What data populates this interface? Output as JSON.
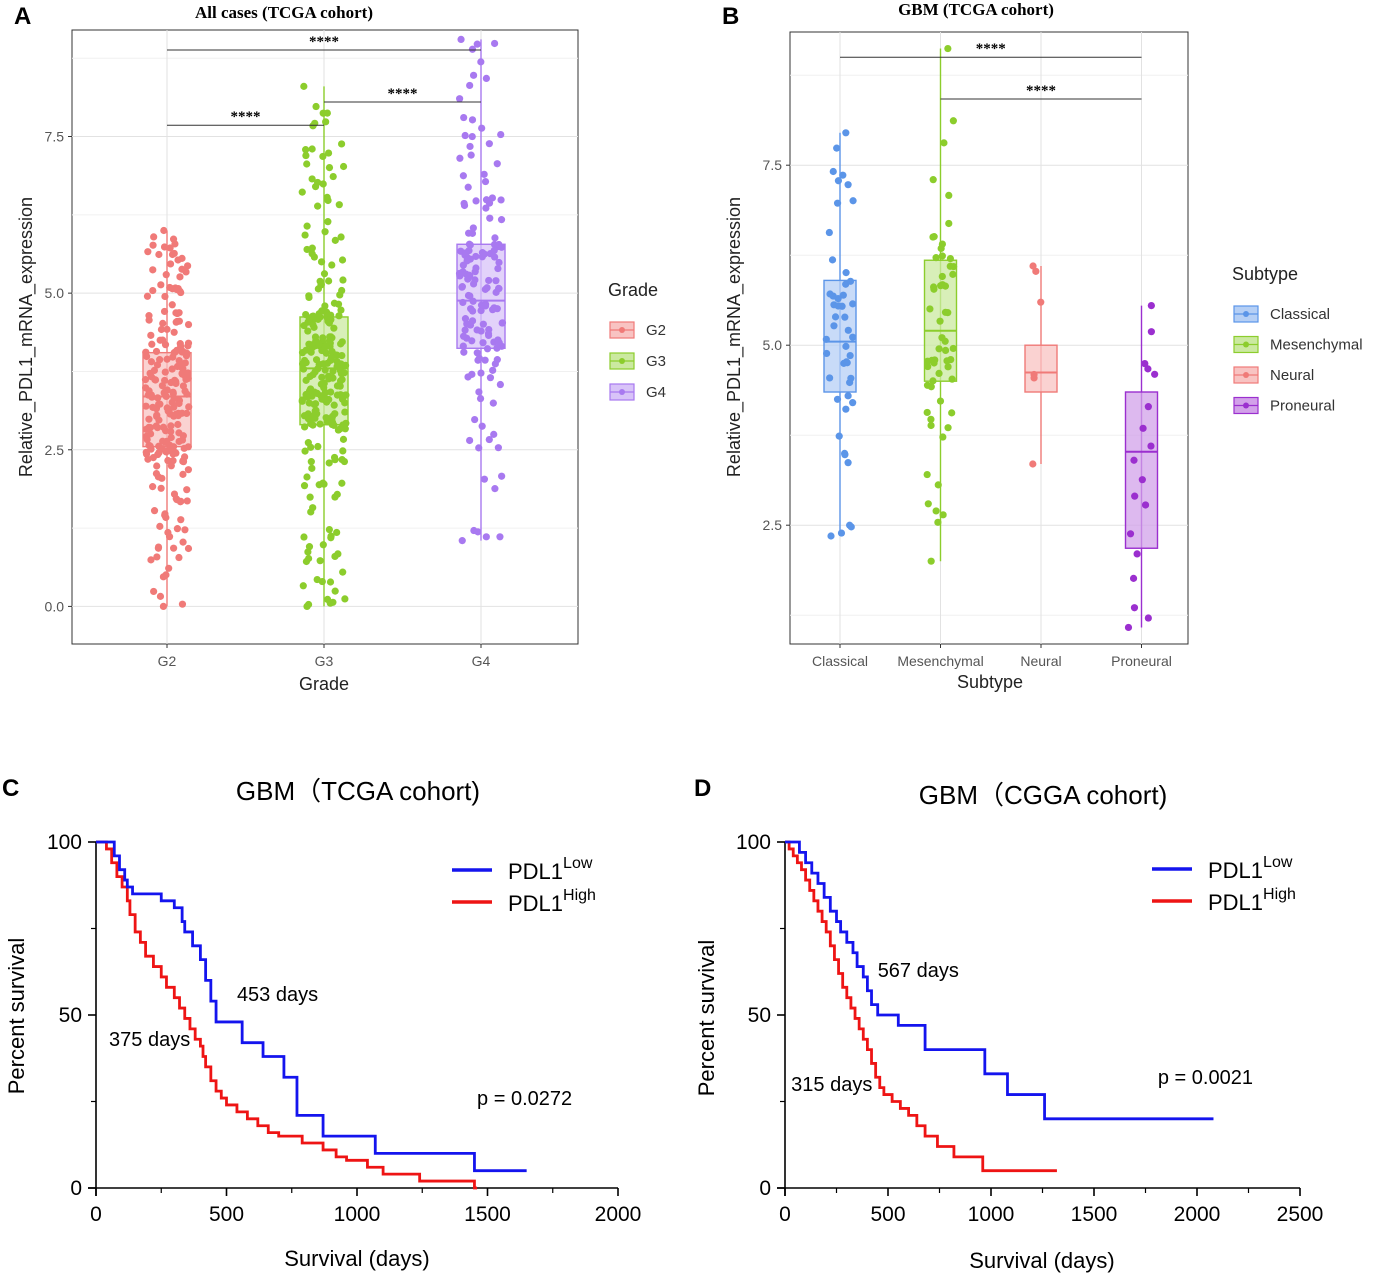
{
  "panels": {
    "a": {
      "label": "A"
    },
    "b": {
      "label": "B"
    },
    "c": {
      "label": "C"
    },
    "d": {
      "label": "D"
    }
  },
  "chart_data": [
    {
      "id": "a",
      "type": "box-scatter",
      "title": "All cases (TCGA cohort)",
      "xlabel": "Grade",
      "ylabel": "Relative_PDL1_mRNA_expression",
      "ylim": [
        -0.6,
        9.2
      ],
      "yticks": [
        0.0,
        2.5,
        5.0,
        7.5
      ],
      "ytick_labels": [
        "0.0",
        "2.5",
        "5.0",
        "7.5"
      ],
      "legend_title": "Grade",
      "categories": [
        "G2",
        "G3",
        "G4"
      ],
      "colors": [
        "#f07a78",
        "#8ccd2c",
        "#a879f0"
      ],
      "boxes": [
        {
          "name": "G2",
          "min": 0.0,
          "q1": 2.55,
          "median": 3.35,
          "q3": 4.05,
          "max": 6.0,
          "n": 230
        },
        {
          "name": "G3",
          "min": 0.0,
          "q1": 2.9,
          "median": 3.8,
          "q3": 4.62,
          "max": 8.3,
          "n": 260
        },
        {
          "name": "G4",
          "min": 1.05,
          "q1": 4.12,
          "median": 4.88,
          "q3": 5.78,
          "max": 9.05,
          "n": 150
        }
      ],
      "significance": [
        {
          "from": "G2",
          "to": "G3",
          "y": 7.68,
          "label": "****"
        },
        {
          "from": "G3",
          "to": "G4",
          "y": 8.05,
          "label": "****"
        },
        {
          "from": "G2",
          "to": "G4",
          "y": 8.88,
          "label": "****"
        }
      ]
    },
    {
      "id": "b",
      "type": "box-scatter",
      "title": "GBM (TCGA cohort)",
      "xlabel": "Subtype",
      "ylabel": "Relative_PDL1_mRNA_expression",
      "ylim": [
        0.85,
        9.35
      ],
      "yticks": [
        2.5,
        5.0,
        7.5
      ],
      "ytick_labels": [
        "2.5",
        "5.0",
        "7.5"
      ],
      "legend_title": "Subtype",
      "categories": [
        "Classical",
        "Mesenchymal",
        "Neural",
        "Proneural"
      ],
      "colors": [
        "#5b95e8",
        "#8ccd2c",
        "#f07a78",
        "#9b2fcf"
      ],
      "boxes": [
        {
          "name": "Classical",
          "min": 2.35,
          "q1": 4.35,
          "median": 5.05,
          "q3": 5.9,
          "max": 7.95,
          "n": 48
        },
        {
          "name": "Mesenchymal",
          "min": 2.0,
          "q1": 4.5,
          "median": 5.2,
          "q3": 6.18,
          "max": 9.12,
          "n": 58
        },
        {
          "name": "Neural",
          "min": 3.35,
          "q1": 4.35,
          "median": 4.62,
          "q3": 5.0,
          "max": 6.1,
          "n": 6
        },
        {
          "name": "Proneural",
          "min": 1.08,
          "q1": 2.18,
          "median": 3.52,
          "q3": 4.35,
          "max": 5.55,
          "n": 18
        }
      ],
      "significance": [
        {
          "from": "Classical",
          "to": "Proneural",
          "y": 9.0,
          "label": "****"
        },
        {
          "from": "Mesenchymal",
          "to": "Proneural",
          "y": 8.42,
          "label": "****"
        }
      ]
    },
    {
      "id": "c",
      "type": "line",
      "title": "GBM（TCGA cohort)",
      "xlabel": "Survival (days)",
      "ylabel": "Percent survival",
      "xlim": [
        0,
        2000
      ],
      "ylim": [
        0,
        100
      ],
      "xticks": [
        0,
        500,
        1000,
        1500,
        2000
      ],
      "yticks": [
        0,
        50,
        100
      ],
      "series": [
        {
          "name": "PDL1",
          "sup": "Low",
          "color": "#1414ee",
          "x": [
            0,
            60,
            70,
            90,
            110,
            120,
            140,
            250,
            300,
            330,
            340,
            370,
            400,
            420,
            440,
            460,
            520,
            560,
            640,
            720,
            770,
            870,
            1070,
            1450,
            1650
          ],
          "y": [
            100,
            100,
            96,
            92,
            89,
            87,
            85,
            83,
            81,
            77,
            74,
            70,
            66,
            60,
            54,
            48,
            48,
            42,
            38,
            32,
            21,
            15,
            10,
            5,
            5
          ]
        },
        {
          "name": "PDL1",
          "sup": "High",
          "color": "#ee1414",
          "x": [
            0,
            40,
            60,
            80,
            100,
            120,
            130,
            150,
            170,
            190,
            220,
            250,
            270,
            300,
            320,
            340,
            360,
            380,
            400,
            410,
            420,
            440,
            460,
            480,
            500,
            540,
            580,
            620,
            660,
            700,
            790,
            870,
            920,
            960,
            1040,
            1100,
            1240,
            1450,
            1460
          ],
          "y": [
            100,
            98,
            94,
            90,
            87,
            83,
            79,
            74,
            71,
            67,
            64,
            61,
            58,
            55,
            52,
            49,
            46,
            43,
            41,
            38,
            35,
            31,
            28,
            26,
            24,
            22,
            20,
            18,
            16,
            15,
            13,
            11,
            9,
            8,
            6,
            4,
            2,
            0,
            0
          ]
        }
      ],
      "annotations": [
        {
          "text": "453 days",
          "x": 540,
          "y": 54
        },
        {
          "text": "375 days",
          "x": 50,
          "y": 41
        },
        {
          "text": "p = 0.0272",
          "x": 1460,
          "y": 24
        }
      ]
    },
    {
      "id": "d",
      "type": "line",
      "title": "GBM（CGGA cohort)",
      "xlabel": "Survival (days)",
      "ylabel": "Percent survival",
      "xlim": [
        0,
        2500
      ],
      "ylim": [
        0,
        100
      ],
      "xticks": [
        0,
        500,
        1000,
        1500,
        2000,
        2500
      ],
      "yticks": [
        0,
        50,
        100
      ],
      "series": [
        {
          "name": "PDL1",
          "sup": "Low",
          "color": "#1414ee",
          "x": [
            0,
            50,
            70,
            100,
            130,
            160,
            190,
            220,
            250,
            270,
            300,
            330,
            350,
            380,
            400,
            420,
            450,
            550,
            680,
            970,
            1080,
            1260,
            2080
          ],
          "y": [
            100,
            100,
            97,
            94,
            91,
            88,
            84,
            80,
            77,
            74,
            71,
            68,
            64,
            61,
            57,
            53,
            50,
            47,
            40,
            33,
            27,
            20,
            20
          ]
        },
        {
          "name": "PDL1",
          "sup": "High",
          "color": "#ee1414",
          "x": [
            0,
            20,
            40,
            60,
            80,
            100,
            120,
            140,
            160,
            180,
            200,
            220,
            240,
            260,
            280,
            300,
            320,
            340,
            360,
            380,
            400,
            420,
            440,
            460,
            480,
            520,
            560,
            600,
            640,
            680,
            740,
            820,
            960,
            1320
          ],
          "y": [
            100,
            98,
            96,
            94,
            92,
            89,
            86,
            83,
            80,
            77,
            74,
            70,
            66,
            62,
            58,
            55,
            52,
            49,
            46,
            43,
            40,
            36,
            32,
            29,
            27,
            25,
            23,
            21,
            18,
            15,
            12,
            9,
            5,
            5
          ]
        }
      ],
      "annotations": [
        {
          "text": "567 days",
          "x": 450,
          "y": 61
        },
        {
          "text": "315 days",
          "x": 30,
          "y": 28
        },
        {
          "text": "p = 0.0021",
          "x": 1810,
          "y": 30
        }
      ]
    }
  ]
}
